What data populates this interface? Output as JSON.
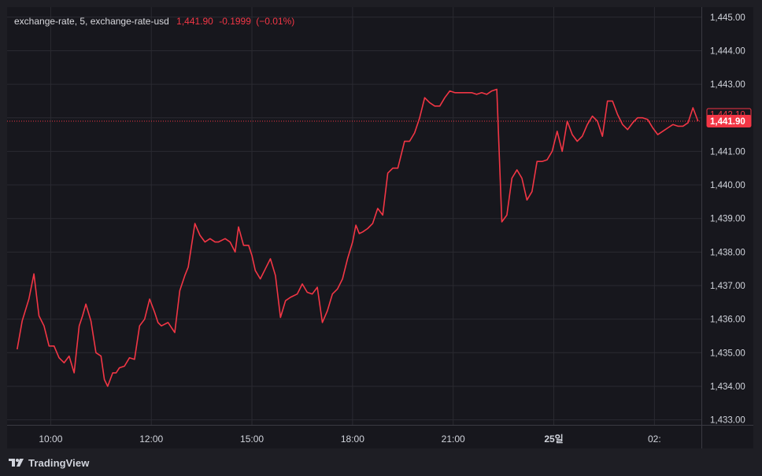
{
  "legend": {
    "symbol": "exchange-rate, 5, exchange-rate-usd",
    "price": "1,441.90",
    "change": "-0.1999",
    "change_pct": "(−0.01%)"
  },
  "branding": {
    "name": "TradingView"
  },
  "colors": {
    "line": "#f23645",
    "background": "#17171d",
    "grid": "#2a2a31",
    "axis_text": "#d1d4dc",
    "badge_last": "#f23645"
  },
  "chart_data": {
    "type": "line",
    "y_axis": {
      "ticks": [
        1445,
        1444,
        1443,
        1442,
        1441,
        1440,
        1439,
        1438,
        1437,
        1436,
        1435,
        1434,
        1433
      ],
      "tick_labels": [
        "1,445.00",
        "1,444.00",
        "1,443.00",
        "1,442.00",
        "1,441.00",
        "1,440.00",
        "1,439.00",
        "1,438.00",
        "1,437.00",
        "1,436.00",
        "1,435.00",
        "1,434.00",
        "1,433.00"
      ],
      "range": [
        1432.85,
        1445.3
      ]
    },
    "x_axis": {
      "ticks": [
        10,
        13,
        16,
        19,
        22,
        25,
        28
      ],
      "tick_labels": [
        "10:00",
        "12:00",
        "15:00",
        "18:00",
        "21:00",
        "25일",
        "02:"
      ],
      "range": [
        8.7,
        29.4
      ]
    },
    "price_labels": [
      {
        "text": "1,442.10",
        "value": 1442.1,
        "style": "outline"
      },
      {
        "text": "1,441.90",
        "value": 1441.9,
        "style": "filled"
      }
    ],
    "grid": true,
    "series": [
      {
        "x": [
          9.0,
          9.15,
          9.35,
          9.5,
          9.65,
          9.8,
          9.95,
          10.1,
          10.25,
          10.4,
          10.55,
          10.7,
          10.85,
          10.95,
          11.05,
          11.2,
          11.35,
          11.5,
          11.6,
          11.7,
          11.85,
          11.95,
          12.05,
          12.2,
          12.35,
          12.5,
          12.65,
          12.8,
          12.95,
          13.1,
          13.2,
          13.3,
          13.5,
          13.7,
          13.85,
          14.0,
          14.1,
          14.3,
          14.45,
          14.6,
          14.75,
          14.9,
          15.0,
          15.2,
          15.35,
          15.5,
          15.6,
          15.75,
          15.9,
          16.0,
          16.1,
          16.25,
          16.4,
          16.55,
          16.7,
          16.85,
          17.0,
          17.15,
          17.35,
          17.5,
          17.65,
          17.8,
          17.95,
          18.1,
          18.25,
          18.4,
          18.55,
          18.7,
          18.85,
          19.0,
          19.1,
          19.2,
          19.3,
          19.45,
          19.6,
          19.75,
          19.9,
          20.05,
          20.2,
          20.35,
          20.55,
          20.7,
          20.85,
          21.0,
          21.15,
          21.3,
          21.45,
          21.6,
          21.75,
          21.9,
          22.05,
          22.2,
          22.35,
          22.55,
          22.7,
          22.85,
          23.0,
          23.15,
          23.3,
          23.45,
          23.6,
          23.75,
          23.9,
          24.05,
          24.2,
          24.35,
          24.5,
          24.65,
          24.8,
          24.95,
          25.1,
          25.25,
          25.4,
          25.55,
          25.7,
          25.85,
          26.0,
          26.15,
          26.3,
          26.45,
          26.6,
          26.75,
          26.9,
          27.05,
          27.2,
          27.35,
          27.5,
          27.65,
          27.8,
          27.95,
          28.1,
          28.25,
          28.4,
          28.55,
          28.7,
          28.85,
          29.0,
          29.15,
          29.3
        ],
        "y": [
          1435.1,
          1435.95,
          1436.6,
          1437.35,
          1436.1,
          1435.8,
          1435.2,
          1435.2,
          1434.85,
          1434.7,
          1434.9,
          1434.4,
          1435.8,
          1436.1,
          1436.45,
          1435.95,
          1435.0,
          1434.9,
          1434.2,
          1434.0,
          1434.4,
          1434.4,
          1434.55,
          1434.6,
          1434.85,
          1434.8,
          1435.8,
          1436.0,
          1436.6,
          1436.2,
          1435.9,
          1435.8,
          1435.9,
          1435.6,
          1436.85,
          1437.3,
          1437.55,
          1438.85,
          1438.5,
          1438.3,
          1438.4,
          1438.3,
          1438.3,
          1438.4,
          1438.3,
          1438.0,
          1438.75,
          1438.2,
          1438.2,
          1437.9,
          1437.45,
          1437.2,
          1437.5,
          1437.8,
          1437.3,
          1436.05,
          1436.55,
          1436.65,
          1436.75,
          1437.05,
          1436.8,
          1436.75,
          1436.95,
          1435.9,
          1436.25,
          1436.75,
          1436.9,
          1437.2,
          1437.8,
          1438.3,
          1438.8,
          1438.55,
          1438.6,
          1438.7,
          1438.85,
          1439.3,
          1439.1,
          1440.35,
          1440.5,
          1440.5,
          1441.3,
          1441.3,
          1441.55,
          1442.0,
          1442.6,
          1442.45,
          1442.35,
          1442.35,
          1442.6,
          1442.8,
          1442.75,
          1442.75,
          1442.75,
          1442.75,
          1442.7,
          1442.75,
          1442.7,
          1442.8,
          1442.85,
          1438.9,
          1439.1,
          1440.2,
          1440.45,
          1440.2,
          1439.55,
          1439.8,
          1440.7,
          1440.7,
          1440.75,
          1441.0,
          1441.6,
          1441.0,
          1441.9,
          1441.5,
          1441.3,
          1441.45,
          1441.8,
          1442.05,
          1441.9,
          1441.45,
          1442.5,
          1442.5,
          1442.1,
          1441.8,
          1441.65,
          1441.85,
          1442.0,
          1442.0,
          1441.95,
          1441.7,
          1441.5,
          1441.6,
          1441.7,
          1441.8,
          1441.75,
          1441.75,
          1441.85,
          1442.3,
          1441.9
        ]
      }
    ]
  }
}
